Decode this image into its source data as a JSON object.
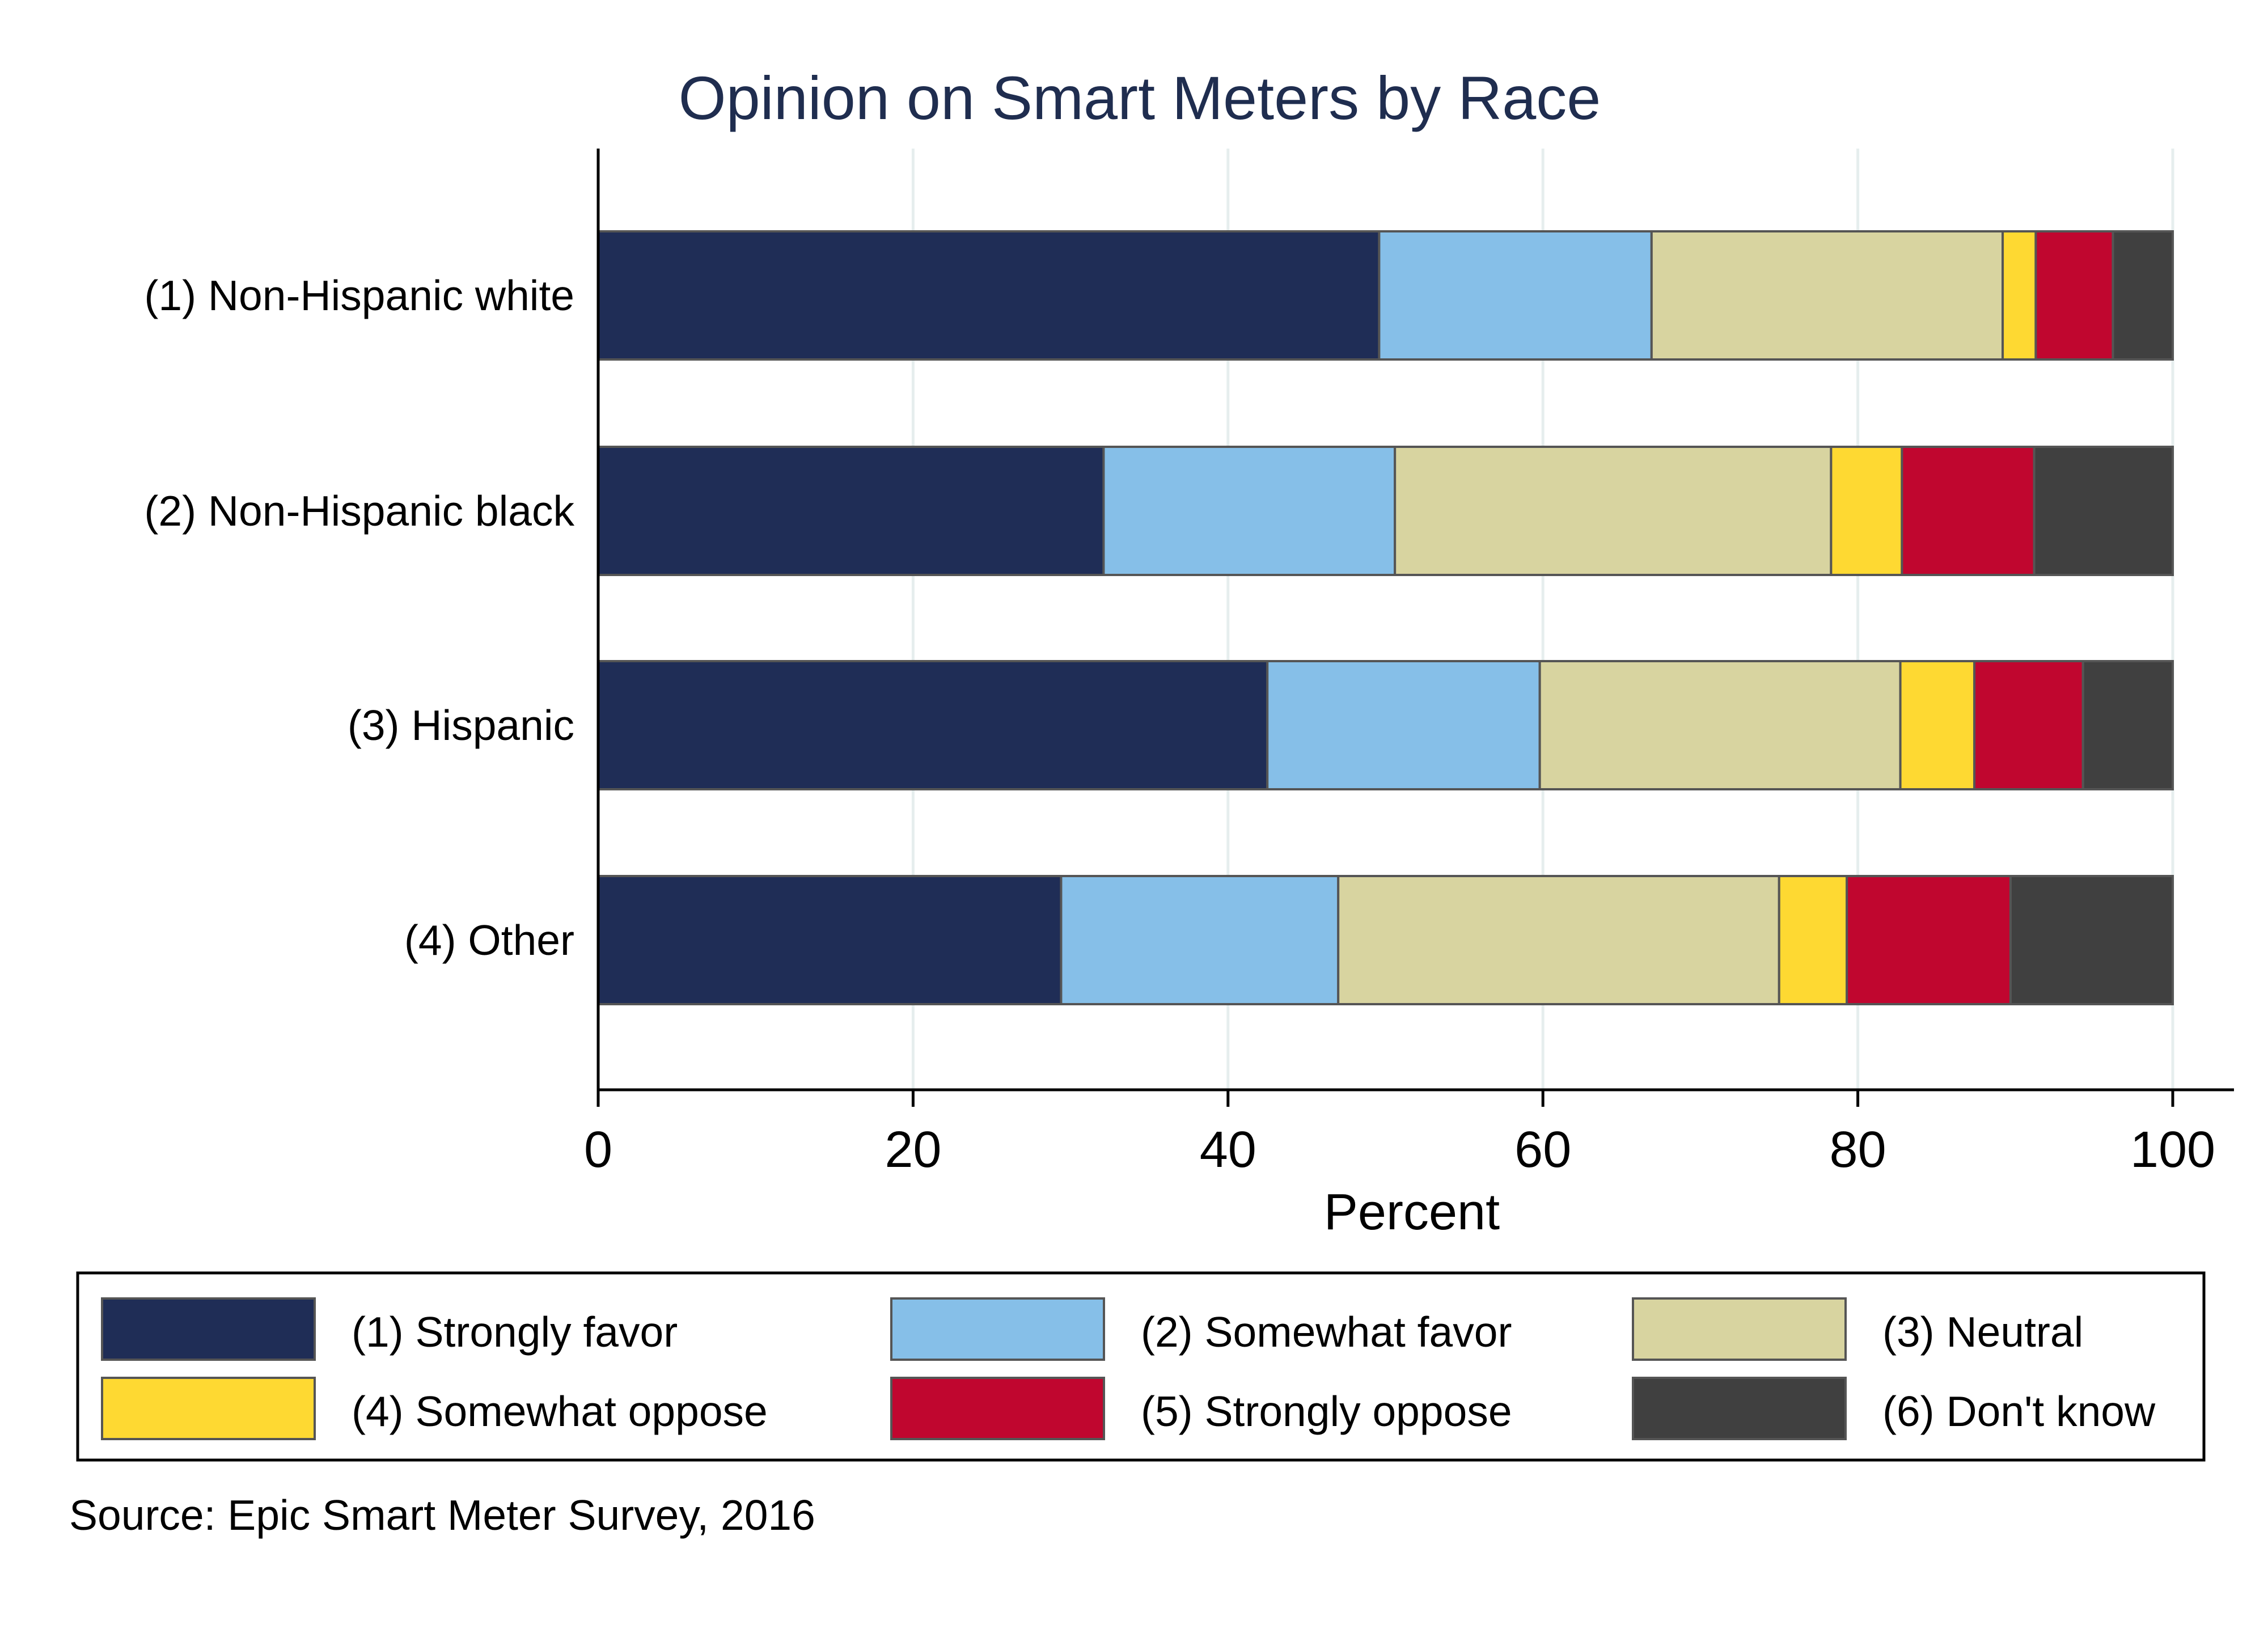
{
  "chart_data": {
    "type": "bar",
    "orientation": "horizontal",
    "stacked": true,
    "title": "Opinion on Smart Meters by Race",
    "xlabel": "Percent",
    "ylabel": "",
    "xlim": [
      0,
      100
    ],
    "xticks": [
      0,
      20,
      40,
      60,
      80,
      100
    ],
    "grid": true,
    "legend_position": "bottom",
    "categories": [
      "(1) Non-Hispanic white",
      "(2) Non-Hispanic black",
      "(3) Hispanic",
      "(4) Other"
    ],
    "series": [
      {
        "name": "(1) Strongly favor",
        "color": "#1f2d56",
        "values": [
          49.6,
          32.1,
          42.5,
          29.4
        ]
      },
      {
        "name": "(2) Somewhat favor",
        "color": "#86bfe8",
        "values": [
          17.3,
          18.5,
          17.3,
          17.6
        ]
      },
      {
        "name": "(3) Neutral",
        "color": "#d8d4a0",
        "values": [
          22.3,
          27.7,
          22.9,
          28.0
        ]
      },
      {
        "name": "(4) Somewhat oppose",
        "color": "#fed932",
        "values": [
          2.1,
          4.5,
          4.7,
          4.3
        ]
      },
      {
        "name": "(5) Strongly oppose",
        "color": "#c0062f",
        "values": [
          4.9,
          8.4,
          6.9,
          10.4
        ]
      },
      {
        "name": "(6) Don't know",
        "color": "#404040",
        "values": [
          3.8,
          8.8,
          5.7,
          10.3
        ]
      }
    ],
    "note": "Source:  Epic Smart Meter Survey, 2016"
  }
}
